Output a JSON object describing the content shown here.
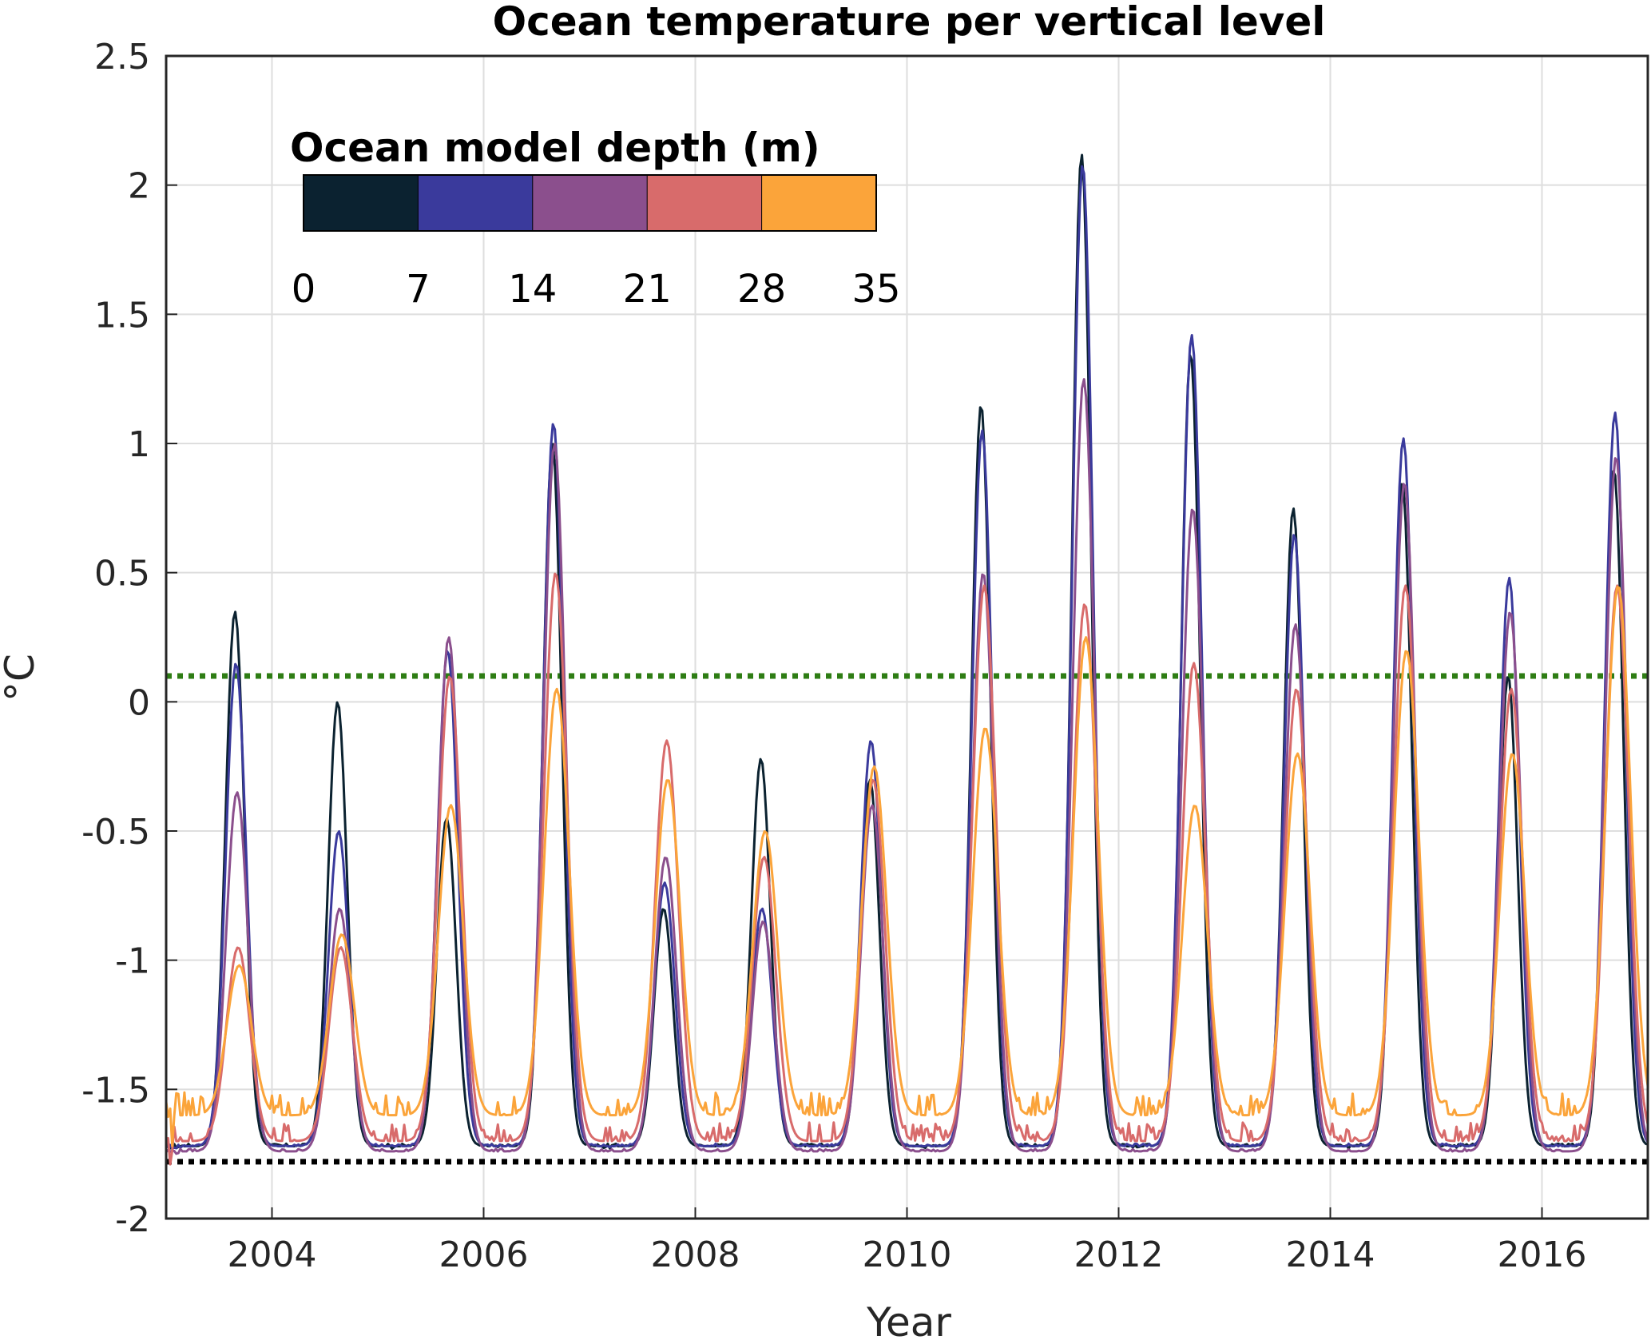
{
  "chart_data": {
    "type": "line",
    "title": "Ocean temperature per vertical level",
    "xlabel": "Year",
    "ylabel": "°C",
    "xlim": [
      2003.0,
      2017.0
    ],
    "ylim": [
      -2,
      2.5
    ],
    "xticks": [
      2004,
      2006,
      2008,
      2010,
      2012,
      2014,
      2016
    ],
    "yticks": [
      -2,
      -1.5,
      -1,
      -0.5,
      0,
      0.5,
      1,
      1.5,
      2,
      2.5
    ],
    "ytick_labels": [
      "-2",
      "-1.5",
      "-1",
      "-0.5",
      "0",
      "0.5",
      "1",
      "1.5",
      "2",
      "2.5"
    ],
    "grid": true,
    "colorbar": {
      "title": "Ocean model depth (m)",
      "ticks": [
        "0",
        "7",
        "14",
        "21",
        "28",
        "35"
      ],
      "colors": [
        "#0b2230",
        "#3a3a9c",
        "#8b4f8d",
        "#d86b6b",
        "#fba43a"
      ]
    },
    "reference_lines": [
      {
        "y": 0.1,
        "color": "#2e7d14",
        "style": "dotted"
      },
      {
        "y": -1.78,
        "color": "#000000",
        "style": "dotted"
      }
    ],
    "series_colors": [
      "#0b2230",
      "#3a3a9c",
      "#8b4f8d",
      "#d86b6b",
      "#fba43a"
    ],
    "baseline": [
      -1.72,
      -1.72,
      -1.74,
      -1.7,
      -1.6
    ],
    "peaks": [
      {
        "x": 2003.65,
        "values": [
          0.35,
          0.15,
          -0.35,
          -0.95,
          -1.02
        ]
      },
      {
        "x": 2004.62,
        "values": [
          0.0,
          -0.5,
          -0.8,
          -0.95,
          -0.9
        ]
      },
      {
        "x": 2005.65,
        "values": [
          -0.45,
          0.2,
          0.25,
          0.1,
          -0.4
        ]
      },
      {
        "x": 2006.65,
        "values": [
          1.0,
          1.08,
          1.0,
          0.5,
          0.05
        ]
      },
      {
        "x": 2007.7,
        "values": [
          -0.8,
          -0.7,
          -0.6,
          -0.15,
          -0.3
        ]
      },
      {
        "x": 2008.62,
        "values": [
          -0.22,
          -0.8,
          -0.85,
          -0.6,
          -0.5
        ]
      },
      {
        "x": 2009.65,
        "values": [
          -0.3,
          -0.15,
          -0.4,
          -0.3,
          -0.25
        ]
      },
      {
        "x": 2010.7,
        "values": [
          1.15,
          1.05,
          0.5,
          0.45,
          -0.1
        ]
      },
      {
        "x": 2011.65,
        "values": [
          2.12,
          2.08,
          1.25,
          0.38,
          0.25
        ]
      },
      {
        "x": 2012.68,
        "values": [
          1.35,
          1.42,
          0.75,
          0.15,
          -0.4
        ]
      },
      {
        "x": 2013.65,
        "values": [
          0.75,
          0.65,
          0.3,
          0.05,
          -0.2
        ]
      },
      {
        "x": 2014.68,
        "values": [
          0.85,
          1.02,
          0.85,
          0.45,
          0.2
        ]
      },
      {
        "x": 2015.68,
        "values": [
          0.1,
          0.48,
          0.35,
          0.05,
          -0.2
        ]
      },
      {
        "x": 2016.68,
        "values": [
          0.9,
          1.12,
          0.95,
          0.45,
          0.45
        ]
      }
    ]
  }
}
